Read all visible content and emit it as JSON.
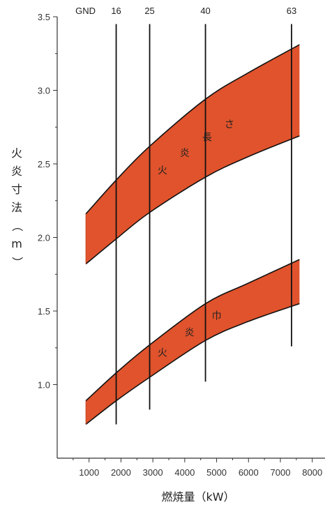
{
  "chart_data": {
    "type": "area",
    "title": "",
    "xlabel": "燃焼量（kW）",
    "ylabel": "火炎寸法（m）",
    "xlim": [
      0,
      8400
    ],
    "ylim": [
      0.5,
      3.5
    ],
    "x_ticks": [
      1000,
      2000,
      3000,
      4000,
      5000,
      6000,
      7000,
      8000
    ],
    "y_ticks": [
      1.0,
      1.5,
      2.0,
      2.5,
      3.0,
      3.5
    ],
    "y_tick_labels": [
      "1.0",
      "1.5",
      "2.0",
      "2.5",
      "3.0",
      "3.5"
    ],
    "fill_color": "#e0532c",
    "grid": false,
    "gnd_label": "GND",
    "gnd_lines": [
      {
        "label": "16",
        "x": 1850,
        "y_from": 0.73,
        "y_to": 3.45
      },
      {
        "label": "25",
        "x": 2900,
        "y_from": 0.83,
        "y_to": 3.45
      },
      {
        "label": "40",
        "x": 4650,
        "y_from": 1.02,
        "y_to": 3.45
      },
      {
        "label": "63",
        "x": 7350,
        "y_from": 1.26,
        "y_to": 3.45
      }
    ],
    "bands": [
      {
        "name": "火炎長さ",
        "label_chars": [
          "火",
          "炎",
          "長",
          "さ"
        ],
        "x": [
          900,
          1850,
          2900,
          4650,
          6000,
          7600
        ],
        "upper": [
          2.16,
          2.39,
          2.62,
          2.94,
          3.12,
          3.31
        ],
        "lower": [
          1.82,
          1.99,
          2.17,
          2.41,
          2.55,
          2.69
        ]
      },
      {
        "name": "火炎巾",
        "label_chars": [
          "火",
          "炎",
          "巾"
        ],
        "x": [
          900,
          1850,
          2900,
          4650,
          6000,
          7600
        ],
        "upper": [
          0.89,
          1.08,
          1.27,
          1.55,
          1.69,
          1.85
        ],
        "lower": [
          0.73,
          0.89,
          1.05,
          1.3,
          1.43,
          1.55
        ]
      }
    ]
  }
}
